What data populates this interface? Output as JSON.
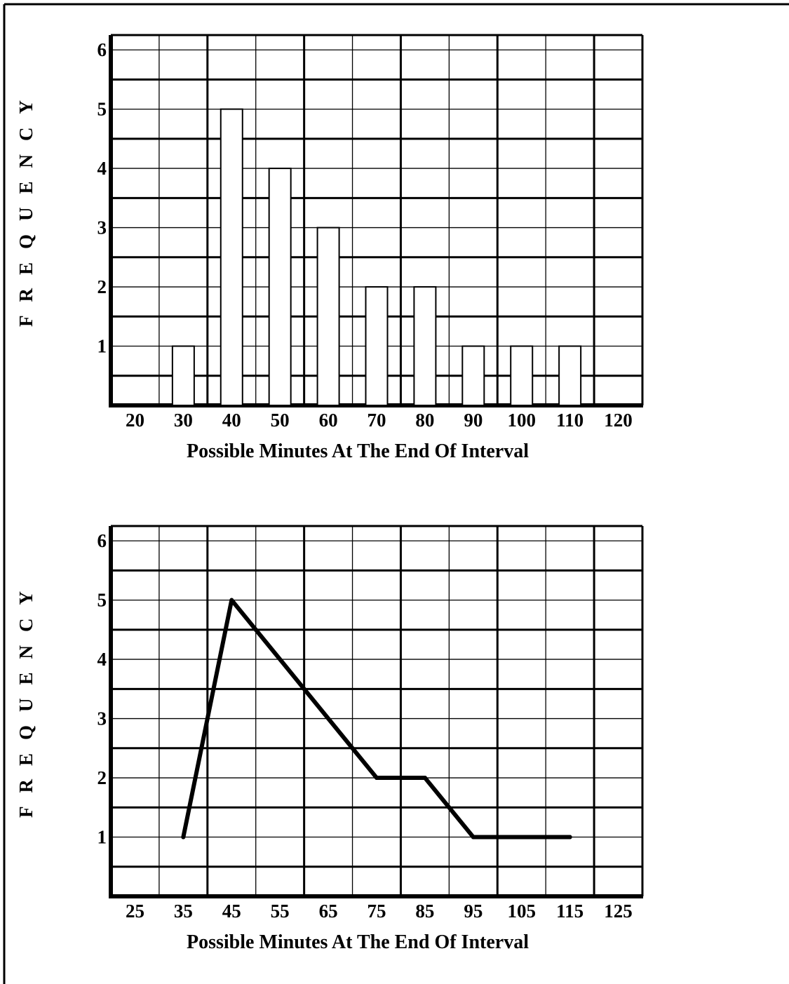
{
  "chart_data": [
    {
      "type": "bar",
      "title": "",
      "xlabel": "Possible Minutes At The End Of Interval",
      "ylabel": "FREQUENCY",
      "x_ticks": [
        "20",
        "30",
        "40",
        "50",
        "60",
        "70",
        "80",
        "90",
        "100",
        "110",
        "120"
      ],
      "y_ticks": [
        "1",
        "2",
        "3",
        "4",
        "5",
        "6"
      ],
      "categories": [
        "30",
        "40",
        "50",
        "60",
        "70",
        "80",
        "90",
        "100",
        "110"
      ],
      "x": [
        30,
        40,
        50,
        60,
        70,
        80,
        90,
        100,
        110
      ],
      "values": [
        1,
        5,
        4,
        3,
        2,
        2,
        1,
        1,
        1
      ],
      "xlim": [
        15,
        125
      ],
      "ylim": [
        0,
        6.25
      ],
      "grid": true,
      "colors": {
        "line": "#000000",
        "fill": "#ffffff"
      }
    },
    {
      "type": "line",
      "title": "",
      "xlabel": "Possible Minutes At The End Of Interval",
      "ylabel": "FREQUENCY",
      "x_ticks": [
        "25",
        "35",
        "45",
        "55",
        "65",
        "75",
        "85",
        "95",
        "105",
        "115",
        "125"
      ],
      "y_ticks": [
        "1",
        "2",
        "3",
        "4",
        "5",
        "6"
      ],
      "x": [
        35,
        45,
        75,
        85,
        95,
        115
      ],
      "values": [
        1,
        5,
        2,
        2,
        1,
        1
      ],
      "xlim": [
        20,
        130
      ],
      "ylim": [
        0,
        6.25
      ],
      "grid": true,
      "colors": {
        "line": "#000000"
      }
    }
  ]
}
